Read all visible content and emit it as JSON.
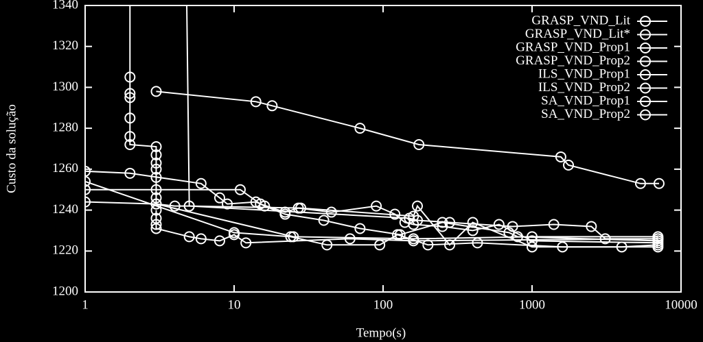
{
  "chart_data": {
    "type": "line",
    "xlabel": "Tempo(s)",
    "ylabel": "Custo da solução",
    "xscale": "log",
    "xlim": [
      1,
      10000
    ],
    "xticks": [
      1,
      10,
      100,
      1000,
      10000
    ],
    "ylim": [
      1200,
      1340
    ],
    "yticks": [
      1200,
      1220,
      1240,
      1260,
      1280,
      1300,
      1320,
      1340
    ],
    "legend": "upper right",
    "grid": false,
    "series": [
      {
        "name": "GRASP_VND_Lit",
        "color": "#ffffff",
        "x": [
          2,
          2,
          2,
          2,
          2,
          2,
          2,
          3,
          3,
          3,
          3,
          3,
          3,
          3,
          3,
          25,
          160,
          1000,
          7000
        ],
        "values": [
          1400,
          1305,
          1297,
          1295,
          1285,
          1276,
          1272,
          1271,
          1267,
          1263,
          1260,
          1256,
          1250,
          1246,
          1243,
          1227,
          1226,
          1227,
          1227
        ]
      },
      {
        "name": "GRASP_VND_Lit*",
        "color": "#ffffff",
        "x": [
          3,
          3,
          3,
          3,
          5,
          6,
          8,
          10,
          12,
          60,
          160,
          7000
        ],
        "values": [
          1240,
          1236,
          1233,
          1231,
          1227,
          1226,
          1225,
          1228,
          1224,
          1226,
          1225,
          1226
        ]
      },
      {
        "name": "GRASP_VND_Prop1",
        "color": "#ffffff",
        "x": [
          1,
          2,
          6,
          8,
          9,
          14,
          16,
          22,
          40,
          70,
          130,
          250,
          700,
          800,
          7000
        ],
        "values": [
          1259,
          1258,
          1253,
          1246,
          1243,
          1244,
          1242,
          1238,
          1235,
          1231,
          1228,
          1234,
          1229,
          1227,
          1225
        ]
      },
      {
        "name": "GRASP_VND_Prop2",
        "color": "#ffffff",
        "x": [
          1,
          11,
          15,
          22,
          27,
          45,
          90,
          120,
          140,
          160,
          250,
          400,
          600,
          1000,
          7000
        ],
        "values": [
          1250,
          1250,
          1243,
          1239,
          1241,
          1239,
          1242,
          1238,
          1234,
          1233,
          1232,
          1230,
          1233,
          1225,
          1224
        ]
      },
      {
        "name": "ILS_VND_Prop1",
        "color": "#ffffff",
        "x": [
          1,
          10,
          24,
          42,
          95,
          125,
          200,
          430,
          1600,
          7000
        ],
        "values": [
          1254,
          1229,
          1227,
          1223,
          1223,
          1228,
          1223,
          1224,
          1222,
          1222
        ]
      },
      {
        "name": "ILS_VND_Prop2",
        "color": "#ffffff",
        "x": [
          1,
          3,
          4,
          5,
          28,
          160,
          170,
          280,
          400,
          1000,
          4000,
          7000
        ],
        "values": [
          1244,
          1243,
          1242,
          1242,
          1241,
          1237,
          1242,
          1223,
          1234,
          1222,
          1222,
          1223
        ]
      },
      {
        "name": "SA_VND_Prop1",
        "color": "#ffffff",
        "x": [
          4.7,
          5,
          150,
          170,
          280,
          740,
          1400,
          2500,
          3100,
          7000
        ],
        "values": [
          1400,
          1242,
          1236,
          1235,
          1234,
          1232,
          1233,
          1232,
          1226,
          1226
        ]
      },
      {
        "name": "SA_VND_Prop2",
        "color": "#ffffff",
        "x": [
          3,
          14,
          18,
          70,
          174,
          1560,
          1755,
          5346,
          7120
        ],
        "values": [
          1298,
          1293,
          1291,
          1280,
          1272,
          1266,
          1262,
          1253,
          1253
        ]
      }
    ]
  }
}
